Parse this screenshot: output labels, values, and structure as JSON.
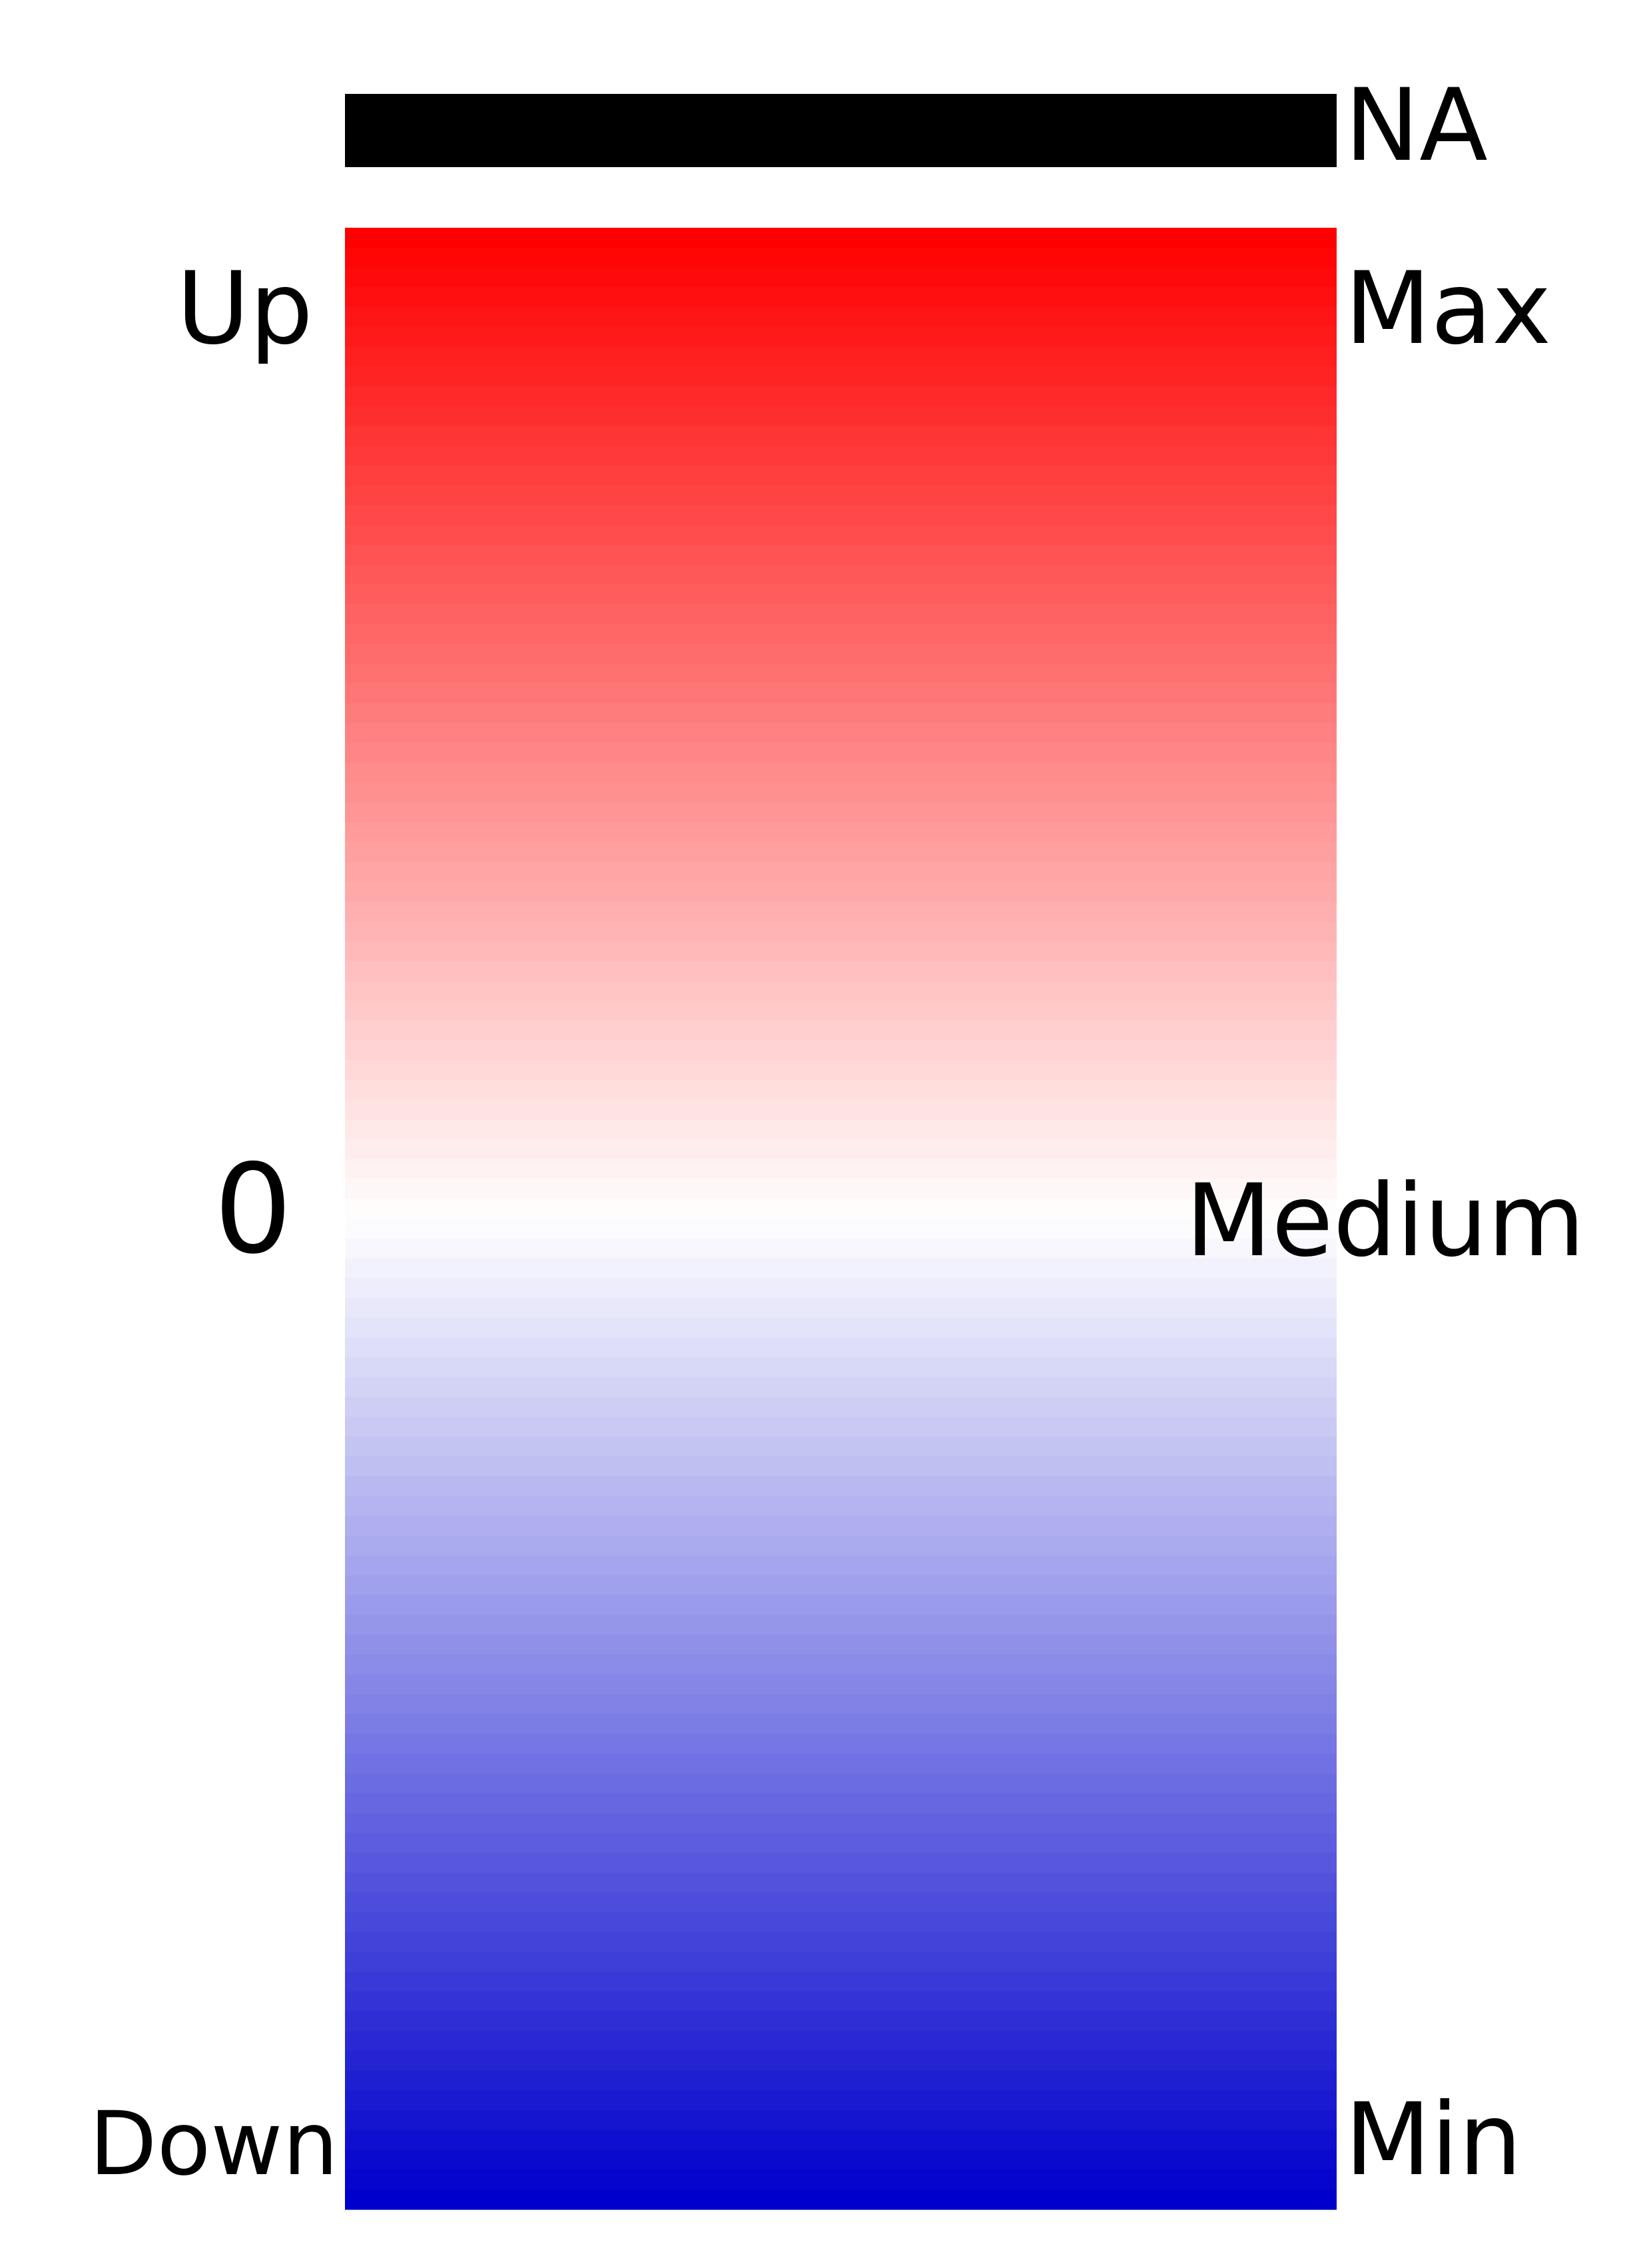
{
  "chart_data": {
    "type": "heatmap",
    "title": "",
    "left_labels": {
      "top": "Up",
      "middle": "0",
      "bottom": "Down"
    },
    "right_labels": {
      "na": "NA",
      "top": "Max",
      "middle": "Medium",
      "bottom": "Min"
    },
    "colors": {
      "na": "#000000",
      "max": "#ff0000",
      "medium": "#ffffff",
      "min": "#0000cc"
    },
    "gradient_steps": 100
  }
}
